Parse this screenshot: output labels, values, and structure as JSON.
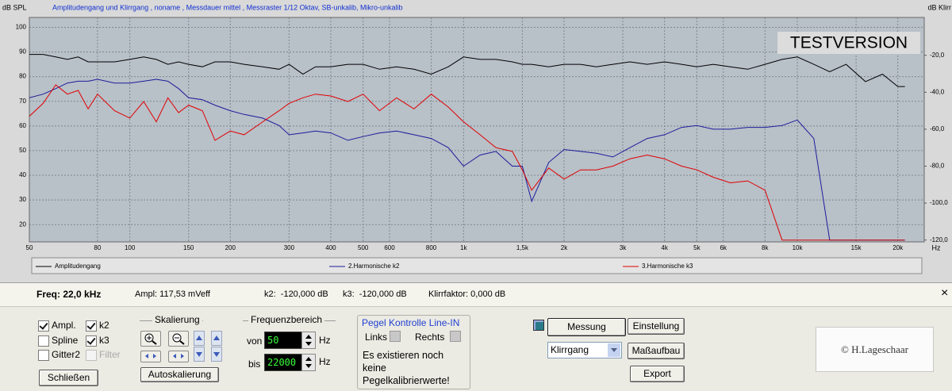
{
  "chart_data": {
    "type": "line",
    "title": "Amplitudengang und Klirrgang , noname , Messdauer mittel , Messraster 1/12 Oktav, SB-unkalib, Mikro-unkalib",
    "y_label": "dB SPL",
    "y2_label": "dB Klirr",
    "x_label": "Hz",
    "watermark": "TESTVERSION",
    "x_scale": "log",
    "grid": true,
    "x": [
      50,
      55,
      60,
      65,
      70,
      75,
      80,
      90,
      100,
      110,
      120,
      130,
      140,
      150,
      165,
      180,
      200,
      220,
      250,
      280,
      300,
      330,
      360,
      400,
      450,
      500,
      560,
      630,
      710,
      800,
      900,
      1000,
      1120,
      1250,
      1400,
      1500,
      1600,
      1800,
      2000,
      2240,
      2500,
      2800,
      3150,
      3550,
      4000,
      4500,
      5000,
      5600,
      6300,
      7100,
      8000,
      9000,
      10000,
      11200,
      12500,
      14000,
      16000,
      18000,
      20000,
      21000
    ],
    "xlim": [
      50,
      24000
    ],
    "xticks": [
      50,
      80,
      100,
      150,
      200,
      300,
      400,
      500,
      600,
      800,
      {
        "value": 1000,
        "label": "1k"
      },
      {
        "value": 1500,
        "label": "1,5k"
      },
      {
        "value": 2000,
        "label": "2k"
      },
      {
        "value": 3000,
        "label": "3k"
      },
      {
        "value": 4000,
        "label": "4k"
      },
      {
        "value": 5000,
        "label": "5k"
      },
      {
        "value": 6000,
        "label": "6k"
      },
      {
        "value": 8000,
        "label": "8k"
      },
      {
        "value": 10000,
        "label": "10k"
      },
      {
        "value": 15000,
        "label": "15k"
      },
      {
        "value": 20000,
        "label": "20k"
      }
    ],
    "ylim": [
      13,
      104
    ],
    "yticks": [
      20,
      30,
      40,
      50,
      60,
      70,
      80,
      90,
      100
    ],
    "y2lim": [
      -121,
      0.5
    ],
    "y2ticks": [
      {
        "value": -20,
        "label": "-20,0"
      },
      {
        "value": -40,
        "label": "-40,0"
      },
      {
        "value": -60,
        "label": "-60,0"
      },
      {
        "value": -80,
        "label": "-80,0"
      },
      {
        "value": -100,
        "label": "-100,0"
      },
      {
        "value": -120,
        "label": "-120,0"
      }
    ],
    "series": [
      {
        "name": "Amplitudengang",
        "color": "#000000",
        "values": [
          89,
          89,
          88,
          87,
          88,
          86,
          86,
          86,
          87,
          88,
          87,
          85,
          86,
          85,
          84,
          86,
          86,
          85,
          84,
          83,
          85,
          81,
          84,
          84,
          85,
          85,
          83,
          84,
          83,
          81,
          84,
          88,
          87,
          87,
          86,
          85,
          85,
          84,
          85,
          85,
          84,
          85,
          86,
          85,
          86,
          85,
          84,
          85,
          84,
          83,
          85,
          87,
          88,
          85,
          82,
          85,
          78,
          81,
          76,
          76
        ]
      },
      {
        "name": "2.Harmonische k2",
        "color": "#1c1c9a",
        "axis": "y2",
        "values": [
          -43,
          -41,
          -38,
          -35,
          -34,
          -34,
          -33,
          -35,
          -35,
          -34,
          -33,
          -34,
          -38,
          -43,
          -44,
          -47,
          -50,
          -52,
          -54,
          -58,
          -63,
          -62,
          -61,
          -62,
          -66,
          -64,
          -62,
          -61,
          -63,
          -65,
          -70,
          -80,
          -74,
          -72,
          -80,
          -80,
          -99,
          -78,
          -71,
          -72,
          -73,
          -75,
          -70,
          -65,
          -63,
          -59,
          -58,
          -60,
          -60,
          -59,
          -59,
          -58,
          -55,
          -65,
          -120,
          -120,
          -120,
          -120,
          -120,
          -120
        ]
      },
      {
        "name": "3.Harmonische k3",
        "color": "#e00000",
        "axis": "y2",
        "values": [
          -53,
          -46,
          -36,
          -41,
          -39,
          -49,
          -41,
          -50,
          -54,
          -45,
          -56,
          -43,
          -51,
          -47,
          -50,
          -66,
          -61,
          -63,
          -56,
          -50,
          -46,
          -43,
          -41,
          -42,
          -45,
          -41,
          -50,
          -43,
          -49,
          -41,
          -48,
          -56,
          -63,
          -70,
          -72,
          -82,
          -93,
          -81,
          -87,
          -82,
          -82,
          -80,
          -76,
          -74,
          -76,
          -80,
          -82,
          -86,
          -89,
          -88,
          -93,
          -120,
          -120,
          -120,
          -120,
          -120,
          -120,
          -120,
          -120,
          -120
        ]
      }
    ]
  },
  "status": {
    "freq": "Freq: 22,0 kHz",
    "ampl": "Ampl: 117,53 mVeff",
    "k2": "k2:  -120,000 dB",
    "k3": "k3:  -120,000 dB",
    "klirr": "Klirrfaktor: 0,000 dB",
    "close": "×"
  },
  "controls": {
    "checkboxes": [
      {
        "label": "Ampl.",
        "checked": true
      },
      {
        "label": "k2",
        "checked": true
      },
      {
        "label": "Spline",
        "checked": false
      },
      {
        "label": "k3",
        "checked": true
      },
      {
        "label": "Gitter2",
        "checked": false
      },
      {
        "label": "Filter",
        "checked": false,
        "disabled": true
      }
    ],
    "close_button": "Schließen",
    "scaling": {
      "title": "Skalierung",
      "auto_button": "Autoskalierung"
    },
    "frequency_range": {
      "title": "Frequenzbereich",
      "from_label": "von",
      "from": "50",
      "from_unit": "Hz",
      "to_label": "bis",
      "to": "22000",
      "to_unit": "Hz"
    },
    "level": {
      "title": "Pegel Kontrolle Line-IN",
      "left": "Links",
      "right": "Rechts",
      "message": "Es existieren noch keine Pegelkalibrierwerte!"
    },
    "buttons": {
      "measure": "Messung",
      "settings": "Einstellung",
      "mode": "Klirrgang",
      "setup": "Maßaufbau",
      "export": "Export"
    },
    "copyright": "© H.Lageschaar"
  }
}
